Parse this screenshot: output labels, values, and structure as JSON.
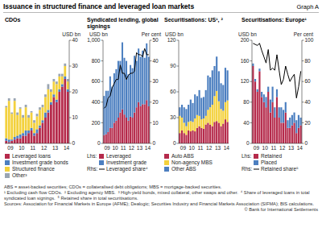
{
  "title": "Issuance in structured finance and leveraged loan markets",
  "graph_label": "Graph A",
  "chart_data": [
    {
      "type": "bar",
      "title": "CDOs",
      "stacked": true,
      "grid": false,
      "legend": "bottom",
      "y_label": "USD bn",
      "categories": [
        null,
        "09",
        null,
        null,
        null,
        "10",
        null,
        null,
        null,
        "11",
        null,
        null,
        null,
        "12",
        null,
        null,
        null,
        "13",
        null,
        null,
        null,
        "14",
        null
      ],
      "ylim": [
        0,
        40
      ],
      "yticks": [
        0,
        10,
        20,
        30,
        40
      ],
      "series": [
        {
          "name": "Leveraged loans",
          "color": "#b52a4b",
          "values": [
            1,
            0.5,
            1,
            1.5,
            2,
            2,
            3,
            3,
            4,
            5,
            3,
            4,
            6,
            8,
            10,
            12,
            15,
            18,
            16,
            20,
            22,
            25,
            20
          ]
        },
        {
          "name": "Investment grade bonds",
          "color": "#4c7fc0",
          "values": [
            1,
            1,
            0.5,
            1,
            1,
            1.5,
            1,
            2,
            1,
            1,
            1,
            1.5,
            1,
            1,
            2,
            1,
            1,
            1,
            1,
            1,
            1,
            1,
            1
          ]
        },
        {
          "name": "Structured finance",
          "color": "#f3d13d",
          "values": [
            12,
            15,
            10,
            14,
            8,
            10,
            6,
            9,
            5,
            6,
            4,
            5,
            6,
            5,
            6,
            8,
            4,
            5,
            6,
            5,
            3,
            4,
            3
          ]
        },
        {
          "name": "Other³",
          "color": "#9aa5b1",
          "values": [
            0.5,
            1,
            0.5,
            1,
            1,
            0.5,
            1,
            1,
            1,
            0.5,
            1,
            1,
            1,
            1,
            1,
            2,
            1,
            1,
            1,
            1,
            1,
            1,
            1
          ]
        }
      ]
    },
    {
      "type": "bar",
      "title": "Syndicated lending, global signings",
      "stacked": true,
      "grid": false,
      "legend": "bottom",
      "y_label": "USD bn",
      "y2_label": "Per cent",
      "lhs_label": "Lhs:",
      "rhs_label": "Rhs:",
      "categories": [
        null,
        "09",
        null,
        null,
        null,
        "10",
        null,
        null,
        null,
        "11",
        null,
        null,
        null,
        "12",
        null,
        null,
        null,
        "13",
        null,
        null,
        null,
        "14",
        null
      ],
      "ylim": [
        0,
        1000
      ],
      "yticks": [
        0,
        200,
        400,
        600,
        800,
        {
          "value": 1000,
          "label": "1,000"
        }
      ],
      "y2lim": [
        0,
        50
      ],
      "y2ticks": [
        0,
        10,
        20,
        30,
        40,
        50
      ],
      "series": [
        {
          "name": "Leveraged",
          "color": "#b52a4b",
          "values": [
            80,
            90,
            110,
            150,
            150,
            200,
            220,
            250,
            300,
            330,
            280,
            250,
            220,
            260,
            250,
            300,
            350,
            400,
            360,
            380,
            380,
            420,
            360
          ]
        },
        {
          "name": "Investment grade",
          "color": "#4c7fc0",
          "values": [
            380,
            420,
            400,
            500,
            400,
            480,
            500,
            550,
            500,
            650,
            550,
            550,
            450,
            500,
            480,
            550,
            450,
            520,
            480,
            520,
            450,
            550,
            480
          ]
        },
        {
          "name": "Leveraged share⁴",
          "type": "line",
          "axis": "y2",
          "color": "#000000",
          "line_style": "solid",
          "values": [
            17,
            18,
            22,
            23,
            27,
            29,
            31,
            31,
            38,
            34,
            34,
            31,
            33,
            34,
            34,
            35,
            44,
            43,
            43,
            42,
            46,
            43,
            43
          ]
        }
      ]
    },
    {
      "type": "bar",
      "title": "Securitisations: US¹, ²",
      "stacked": true,
      "grid": false,
      "legend": "bottom",
      "y_label": "USD bn",
      "categories": [
        null,
        "09",
        null,
        null,
        null,
        "10",
        null,
        null,
        null,
        "11",
        null,
        null,
        null,
        "12",
        null,
        null,
        null,
        "13",
        null,
        null,
        null,
        "14",
        null
      ],
      "ylim": [
        0,
        120
      ],
      "yticks": [
        0,
        30,
        60,
        90,
        120
      ],
      "series": [
        {
          "name": "Auto ABS",
          "color": "#b52a4b",
          "values": [
            12,
            15,
            12,
            10,
            15,
            14,
            15,
            14,
            18,
            20,
            18,
            17,
            22,
            24,
            22,
            20,
            25,
            26,
            24,
            20,
            23,
            28,
            25
          ]
        },
        {
          "name": "Non-agency MBS",
          "color": "#f3d13d",
          "values": [
            20,
            15,
            12,
            10,
            10,
            12,
            10,
            15,
            15,
            12,
            10,
            12,
            10,
            15,
            20,
            25,
            30,
            35,
            25,
            20,
            15,
            20,
            25
          ]
        },
        {
          "name": "Other ABS",
          "color": "#4c7fc0",
          "values": [
            10,
            15,
            18,
            20,
            20,
            25,
            22,
            28,
            22,
            30,
            25,
            25,
            30,
            40,
            35,
            40,
            35,
            40,
            35,
            30,
            30,
            40,
            35
          ]
        }
      ]
    },
    {
      "type": "bar",
      "title": "Securitisations: Europe¹",
      "stacked": true,
      "grid": false,
      "legend": "bottom",
      "y_label": "USD bn",
      "y2_label": "Per cent",
      "lhs_label": "Lhs:",
      "rhs_label": "Rhs:",
      "categories": [
        null,
        "09",
        null,
        null,
        null,
        "10",
        null,
        null,
        null,
        "11",
        null,
        null,
        null,
        "12",
        null,
        null,
        null,
        "13",
        null,
        null,
        null,
        "14",
        null
      ],
      "ylim": [
        0,
        200
      ],
      "yticks": [
        0,
        40,
        80,
        120,
        160,
        200
      ],
      "y2lim": [
        0,
        100
      ],
      "y2ticks": [
        0,
        20,
        40,
        60,
        80,
        100
      ],
      "series": [
        {
          "name": "Retained",
          "color": "#b52a4b",
          "values": [
            150,
            120,
            100,
            140,
            90,
            80,
            70,
            100,
            60,
            80,
            50,
            90,
            50,
            40,
            40,
            60,
            30,
            30,
            35,
            40,
            20,
            30,
            35
          ]
        },
        {
          "name": "Placed",
          "color": "#4c7fc0",
          "values": [
            5,
            5,
            5,
            5,
            10,
            15,
            20,
            10,
            25,
            30,
            20,
            15,
            20,
            30,
            25,
            20,
            15,
            20,
            20,
            20,
            25,
            25,
            15
          ]
        },
        {
          "name": "Retained share⁵",
          "type": "line",
          "axis": "y2",
          "color": "#000000",
          "line_style": "solid",
          "values": [
            97,
            96,
            95,
            97,
            90,
            84,
            78,
            91,
            71,
            73,
            71,
            86,
            71,
            57,
            62,
            75,
            67,
            60,
            64,
            67,
            44,
            55,
            70
          ]
        }
      ]
    }
  ],
  "abbreviations": "ABS = asset-backed securities; CDOs = collateralised debt obligations; MBS = mortgage-backed securities.",
  "footnotes": [
    "¹ Excluding cash flow CDOs.",
    "² Excluding agency MBS.",
    "³ High-yield bonds, mixed collateral, other swaps and other.",
    "⁴ Share of leveraged loans in total syndicated loan signings.",
    "⁵ Retained share in total securitisations."
  ],
  "sources": "Sources: Association for Financial Markets in Europe (AFME); Dealogic; Securities Industry and Financial Markets Association (SIFMA); BIS calculations.",
  "copyright": "© Bank for International Settlements"
}
